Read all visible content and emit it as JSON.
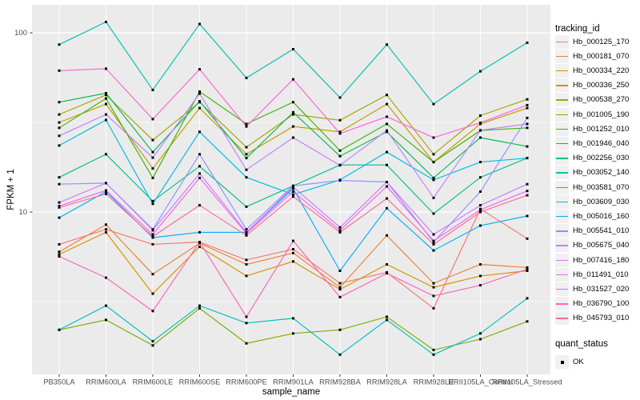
{
  "figure": {
    "background": "#ffffff",
    "panel_background": "#ebebeb",
    "gridline_color": "#ffffff",
    "tick_text_color": "#4d4d4d",
    "marker_color": "#000000"
  },
  "chart_data": {
    "type": "line",
    "title": "",
    "xlabel": "sample_name",
    "ylabel": "FPKM + 1",
    "y_scale": "log10",
    "grid": "on",
    "legend_position": "right",
    "ylim": [
      1.24,
      143
    ],
    "y_ticks": [
      {
        "value": 100,
        "label": "100"
      },
      {
        "value": 10,
        "label": "10"
      }
    ],
    "y_minor_ticks": [
      31.62,
      3.162
    ],
    "categories": [
      "PB350LA",
      "RRIM600LA",
      "RRIM600LE",
      "RRIM600SE",
      "RRIM600PE",
      "RRIM901LA",
      "RRIM928BA",
      "RRIM928LA",
      "RRIM928LE",
      "RRII105LA_Control",
      "RRII105LA_Stressed"
    ],
    "legend_title": "tracking_id",
    "legend2_title": "quant_status",
    "legend2_items": [
      "OK"
    ],
    "marker": "square",
    "series": [
      {
        "name": "Hb_000125_170",
        "color": "#F8766D",
        "values": [
          6.6,
          8.0,
          6.6,
          6.8,
          5.4,
          6.2,
          4.0,
          4.6,
          2.9,
          10.4,
          7.1
        ]
      },
      {
        "name": "Hb_000181_070",
        "color": "#EA8331",
        "values": [
          6.0,
          8.5,
          4.5,
          6.7,
          5.1,
          5.9,
          3.8,
          7.4,
          4.0,
          5.1,
          4.9
        ]
      },
      {
        "name": "Hb_000334_220",
        "color": "#D89000",
        "values": [
          5.8,
          7.7,
          3.5,
          6.4,
          4.4,
          5.3,
          3.7,
          5.1,
          3.8,
          4.4,
          4.7
        ]
      },
      {
        "name": "Hb_000336_250",
        "color": "#C09B00",
        "values": [
          31.6,
          40,
          17.5,
          38,
          21,
          30,
          28,
          40,
          19,
          31,
          38
        ]
      },
      {
        "name": "Hb_000538_270",
        "color": "#A3A500",
        "values": [
          35,
          45,
          25.2,
          41,
          23,
          35,
          32.5,
          45,
          21,
          34.5,
          42.5
        ]
      },
      {
        "name": "Hb_001005_190",
        "color": "#7CAE00",
        "values": [
          2.2,
          2.5,
          1.8,
          2.9,
          1.85,
          2.1,
          2.2,
          2.6,
          1.7,
          1.95,
          2.45
        ]
      },
      {
        "name": "Hb_001252_010",
        "color": "#39B600",
        "values": [
          29.5,
          43,
          15.5,
          47,
          31,
          41,
          22,
          31,
          19,
          28.5,
          29.5
        ]
      },
      {
        "name": "Hb_001946_040",
        "color": "#00BB4E",
        "values": [
          41,
          46,
          21.6,
          41.5,
          20,
          36,
          20.5,
          28,
          15.5,
          26,
          23.2
        ]
      },
      {
        "name": "Hb_002256_030",
        "color": "#00C087",
        "values": [
          15.6,
          21,
          11.5,
          18,
          10.7,
          14,
          18.3,
          18.3,
          9.8,
          15.6,
          20
        ]
      },
      {
        "name": "Hb_003052_140",
        "color": "#00C0B2",
        "values": [
          86,
          115,
          48,
          112,
          56,
          81,
          43.5,
          86,
          40,
          61,
          88
        ]
      },
      {
        "name": "Hb_003581_070",
        "color": "#00BFC4",
        "values": [
          2.2,
          3.0,
          1.9,
          3.0,
          2.4,
          2.55,
          1.6,
          2.5,
          1.6,
          2.1,
          3.3
        ]
      },
      {
        "name": "Hb_003609_030",
        "color": "#00BAE0",
        "values": [
          23.5,
          32.6,
          11.1,
          28,
          15.6,
          12.5,
          15.1,
          21.6,
          15.1,
          19,
          20
        ]
      },
      {
        "name": "Hb_005016_160",
        "color": "#00ACFC",
        "values": [
          9.3,
          13,
          7.2,
          7.7,
          7.7,
          13.5,
          4.7,
          10.5,
          6.1,
          8.4,
          9.5
        ]
      },
      {
        "name": "Hb_005541_010",
        "color": "#8B93FF",
        "values": [
          14.3,
          14.5,
          8.0,
          21,
          8.0,
          14,
          15.0,
          14.7,
          6.8,
          13,
          33.5
        ]
      },
      {
        "name": "Hb_005675_040",
        "color": "#BC81FF",
        "values": [
          26.6,
          35,
          20.1,
          45.8,
          17.2,
          26,
          18.2,
          28.5,
          12,
          28.6,
          31
        ]
      },
      {
        "name": "Hb_007416_180",
        "color": "#D575FE",
        "values": [
          11.3,
          14.5,
          7.9,
          16.4,
          7.7,
          13.8,
          8.2,
          14.7,
          7.5,
          10.9,
          14.3
        ]
      },
      {
        "name": "Hb_011491_010",
        "color": "#EC67F0",
        "values": [
          10.8,
          13.2,
          7.5,
          15.5,
          7.6,
          13.0,
          7.9,
          13.9,
          6.9,
          10.3,
          13.1
        ]
      },
      {
        "name": "Hb_031527_020",
        "color": "#FA62DB",
        "values": [
          61.5,
          63,
          33,
          62.6,
          30,
          55,
          27.4,
          34,
          26,
          31.5,
          39.5
        ]
      },
      {
        "name": "Hb_036790_100",
        "color": "#FF62BC",
        "values": [
          5.65,
          4.3,
          2.8,
          6.8,
          2.6,
          6.9,
          3.35,
          4.55,
          3.4,
          3.9,
          4.8
        ]
      },
      {
        "name": "Hb_045793_010",
        "color": "#FF6A98",
        "values": [
          10.6,
          12.6,
          7.3,
          10.9,
          7.4,
          12.2,
          7.7,
          11.9,
          6.6,
          10.0,
          12.4
        ]
      }
    ]
  }
}
